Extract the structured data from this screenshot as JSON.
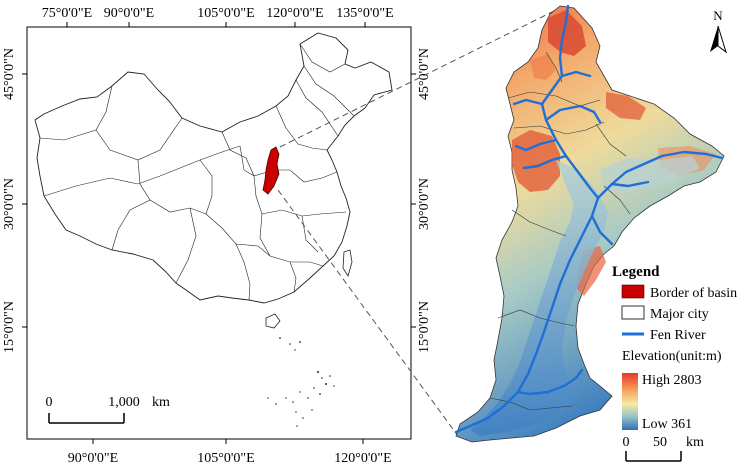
{
  "overview_map": {
    "top_ticks": [
      "75°0'0\"E",
      "90°0'0\"E",
      "105°0'0\"E",
      "120°0'0\"E",
      "135°0'0\"E"
    ],
    "bottom_ticks": [
      "90°0'0\"E",
      "105°0'0\"E",
      "120°0'0\"E"
    ],
    "left_ticks": [
      "45°0'0\"N",
      "30°0'0\"N",
      "15°0'0\"N"
    ],
    "right_ticks": [
      "45°0'0\"N",
      "30°0'0\"N",
      "15°0'0\"N"
    ],
    "scalebar": {
      "start": "0",
      "end": "1,000",
      "unit": "km"
    }
  },
  "basin_map": {
    "north_arrow": "N",
    "scalebar": {
      "start": "0",
      "end": "50",
      "unit": "km"
    }
  },
  "legend": {
    "title": "Legend",
    "items": [
      {
        "label": "Border of basin",
        "color": "#c80000"
      },
      {
        "label": "Major city",
        "color": "#ffffff"
      },
      {
        "label": "Fen River",
        "color": "#1f6fd6"
      }
    ],
    "elevation_title": "Elevation(unit:m)",
    "high": "High 2803",
    "low": "Low 361",
    "ramp_colors": [
      "#e8372a",
      "#f4a25c",
      "#f7e9a8",
      "#8fbfc7",
      "#2f6db5"
    ]
  }
}
